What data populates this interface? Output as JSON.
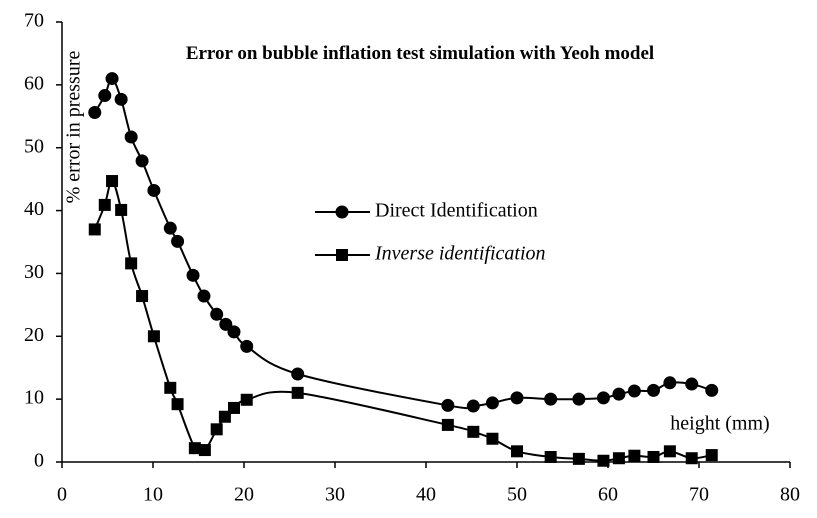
{
  "chart_data": {
    "type": "line",
    "smooth": true,
    "title": "Error on bubble inflation test simulation with Yeoh model",
    "xlabel": "height (mm)",
    "ylabel": "% error in pressure",
    "xlim": [
      0,
      80
    ],
    "xticks": [
      0,
      10,
      20,
      30,
      40,
      50,
      60,
      70,
      80
    ],
    "ylim": [
      0,
      70
    ],
    "yticks": [
      0,
      10,
      20,
      30,
      40,
      50,
      60,
      70
    ],
    "series": [
      {
        "name": "Direct Identification",
        "color": "#000000",
        "marker": "circle",
        "x": [
          3.6,
          4.7,
          5.5,
          6.5,
          7.6,
          8.8,
          10.1,
          11.9,
          12.7,
          14.4,
          15.6,
          17,
          18,
          18.9,
          20.3,
          25.9,
          42.4,
          45.2,
          47.3,
          50,
          53.7,
          56.8,
          59.5,
          61.2,
          62.9,
          65,
          66.8,
          69.2,
          71.4
        ],
        "values": [
          55.6,
          58.3,
          61,
          57.7,
          51.7,
          47.9,
          43.2,
          37.2,
          35.1,
          29.7,
          26.4,
          23.5,
          21.9,
          20.7,
          18.4,
          14,
          9,
          8.9,
          9.4,
          10.2,
          10,
          10,
          10.2,
          10.8,
          11.3,
          11.4,
          12.6,
          12.4,
          11.4
        ]
      },
      {
        "name": "Inverse identification",
        "color": "#000000",
        "marker": "square",
        "x": [
          3.6,
          4.7,
          5.5,
          6.5,
          7.6,
          8.8,
          10.1,
          11.9,
          12.7,
          14.6,
          15.7,
          17,
          17.9,
          18.9,
          20.3,
          25.9,
          42.4,
          45.2,
          47.3,
          50,
          53.7,
          56.8,
          59.5,
          61.2,
          62.9,
          65,
          66.8,
          69.2,
          71.4
        ],
        "values": [
          37,
          40.9,
          44.7,
          40.1,
          31.6,
          26.4,
          20,
          11.8,
          9.2,
          2.2,
          1.9,
          5.2,
          7.2,
          8.6,
          9.9,
          11,
          5.9,
          4.8,
          3.7,
          1.7,
          0.8,
          0.5,
          0.2,
          0.6,
          1,
          0.8,
          1.7,
          0.6,
          1.1
        ]
      }
    ]
  }
}
